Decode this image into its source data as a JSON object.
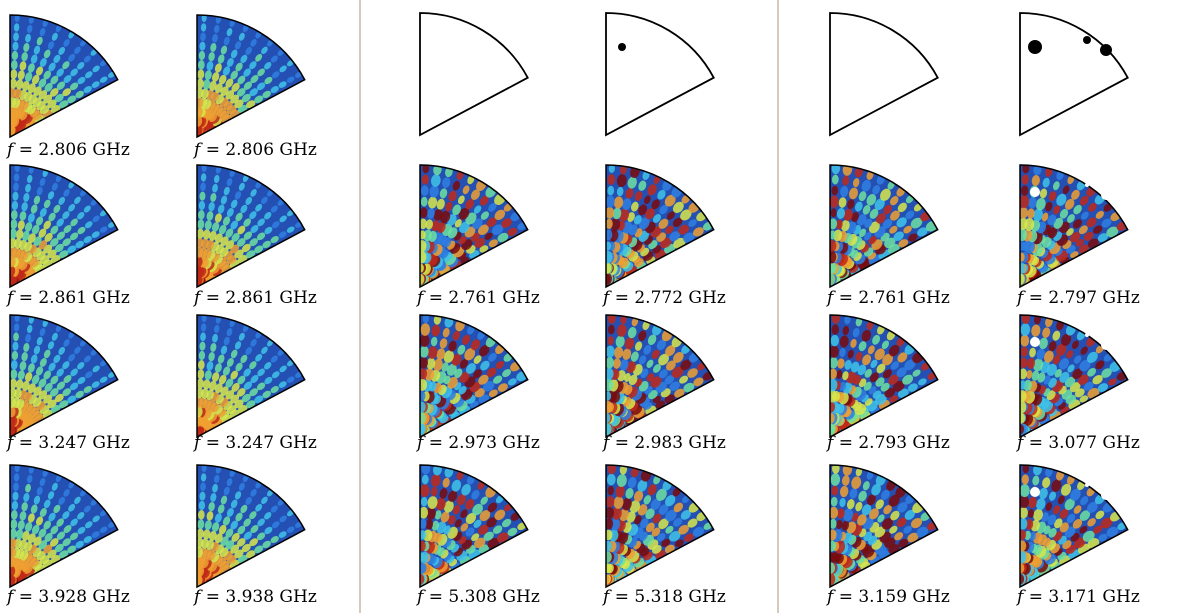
{
  "groups": [
    {
      "rows": [
        [
          "f = 2.806 GHz",
          "f = 2.806 GHz"
        ],
        [
          "f = 2.861 GHz",
          "f = 2.861 GHz"
        ],
        [
          "f = 3.247 GHz",
          "f = 3.247 GHz"
        ],
        [
          "f = 3.928 GHz",
          "f = 3.938 GHz"
        ]
      ]
    },
    {
      "rows": [
        [
          "f = 2.761 GHz",
          "f = 2.772 GHz"
        ],
        [
          "f = 2.973 GHz",
          "f = 2.983 GHz"
        ],
        [
          "f = 5.308 GHz",
          "f = 5.318 GHz"
        ]
      ]
    },
    {
      "rows": [
        [
          "f = 2.761 GHz",
          "f = 2.797 GHz"
        ],
        [
          "f = 2.793 GHz",
          "f = 3.077 GHz"
        ],
        [
          "f = 3.159 GHz",
          "f = 3.171 GHz"
        ]
      ]
    }
  ]
}
